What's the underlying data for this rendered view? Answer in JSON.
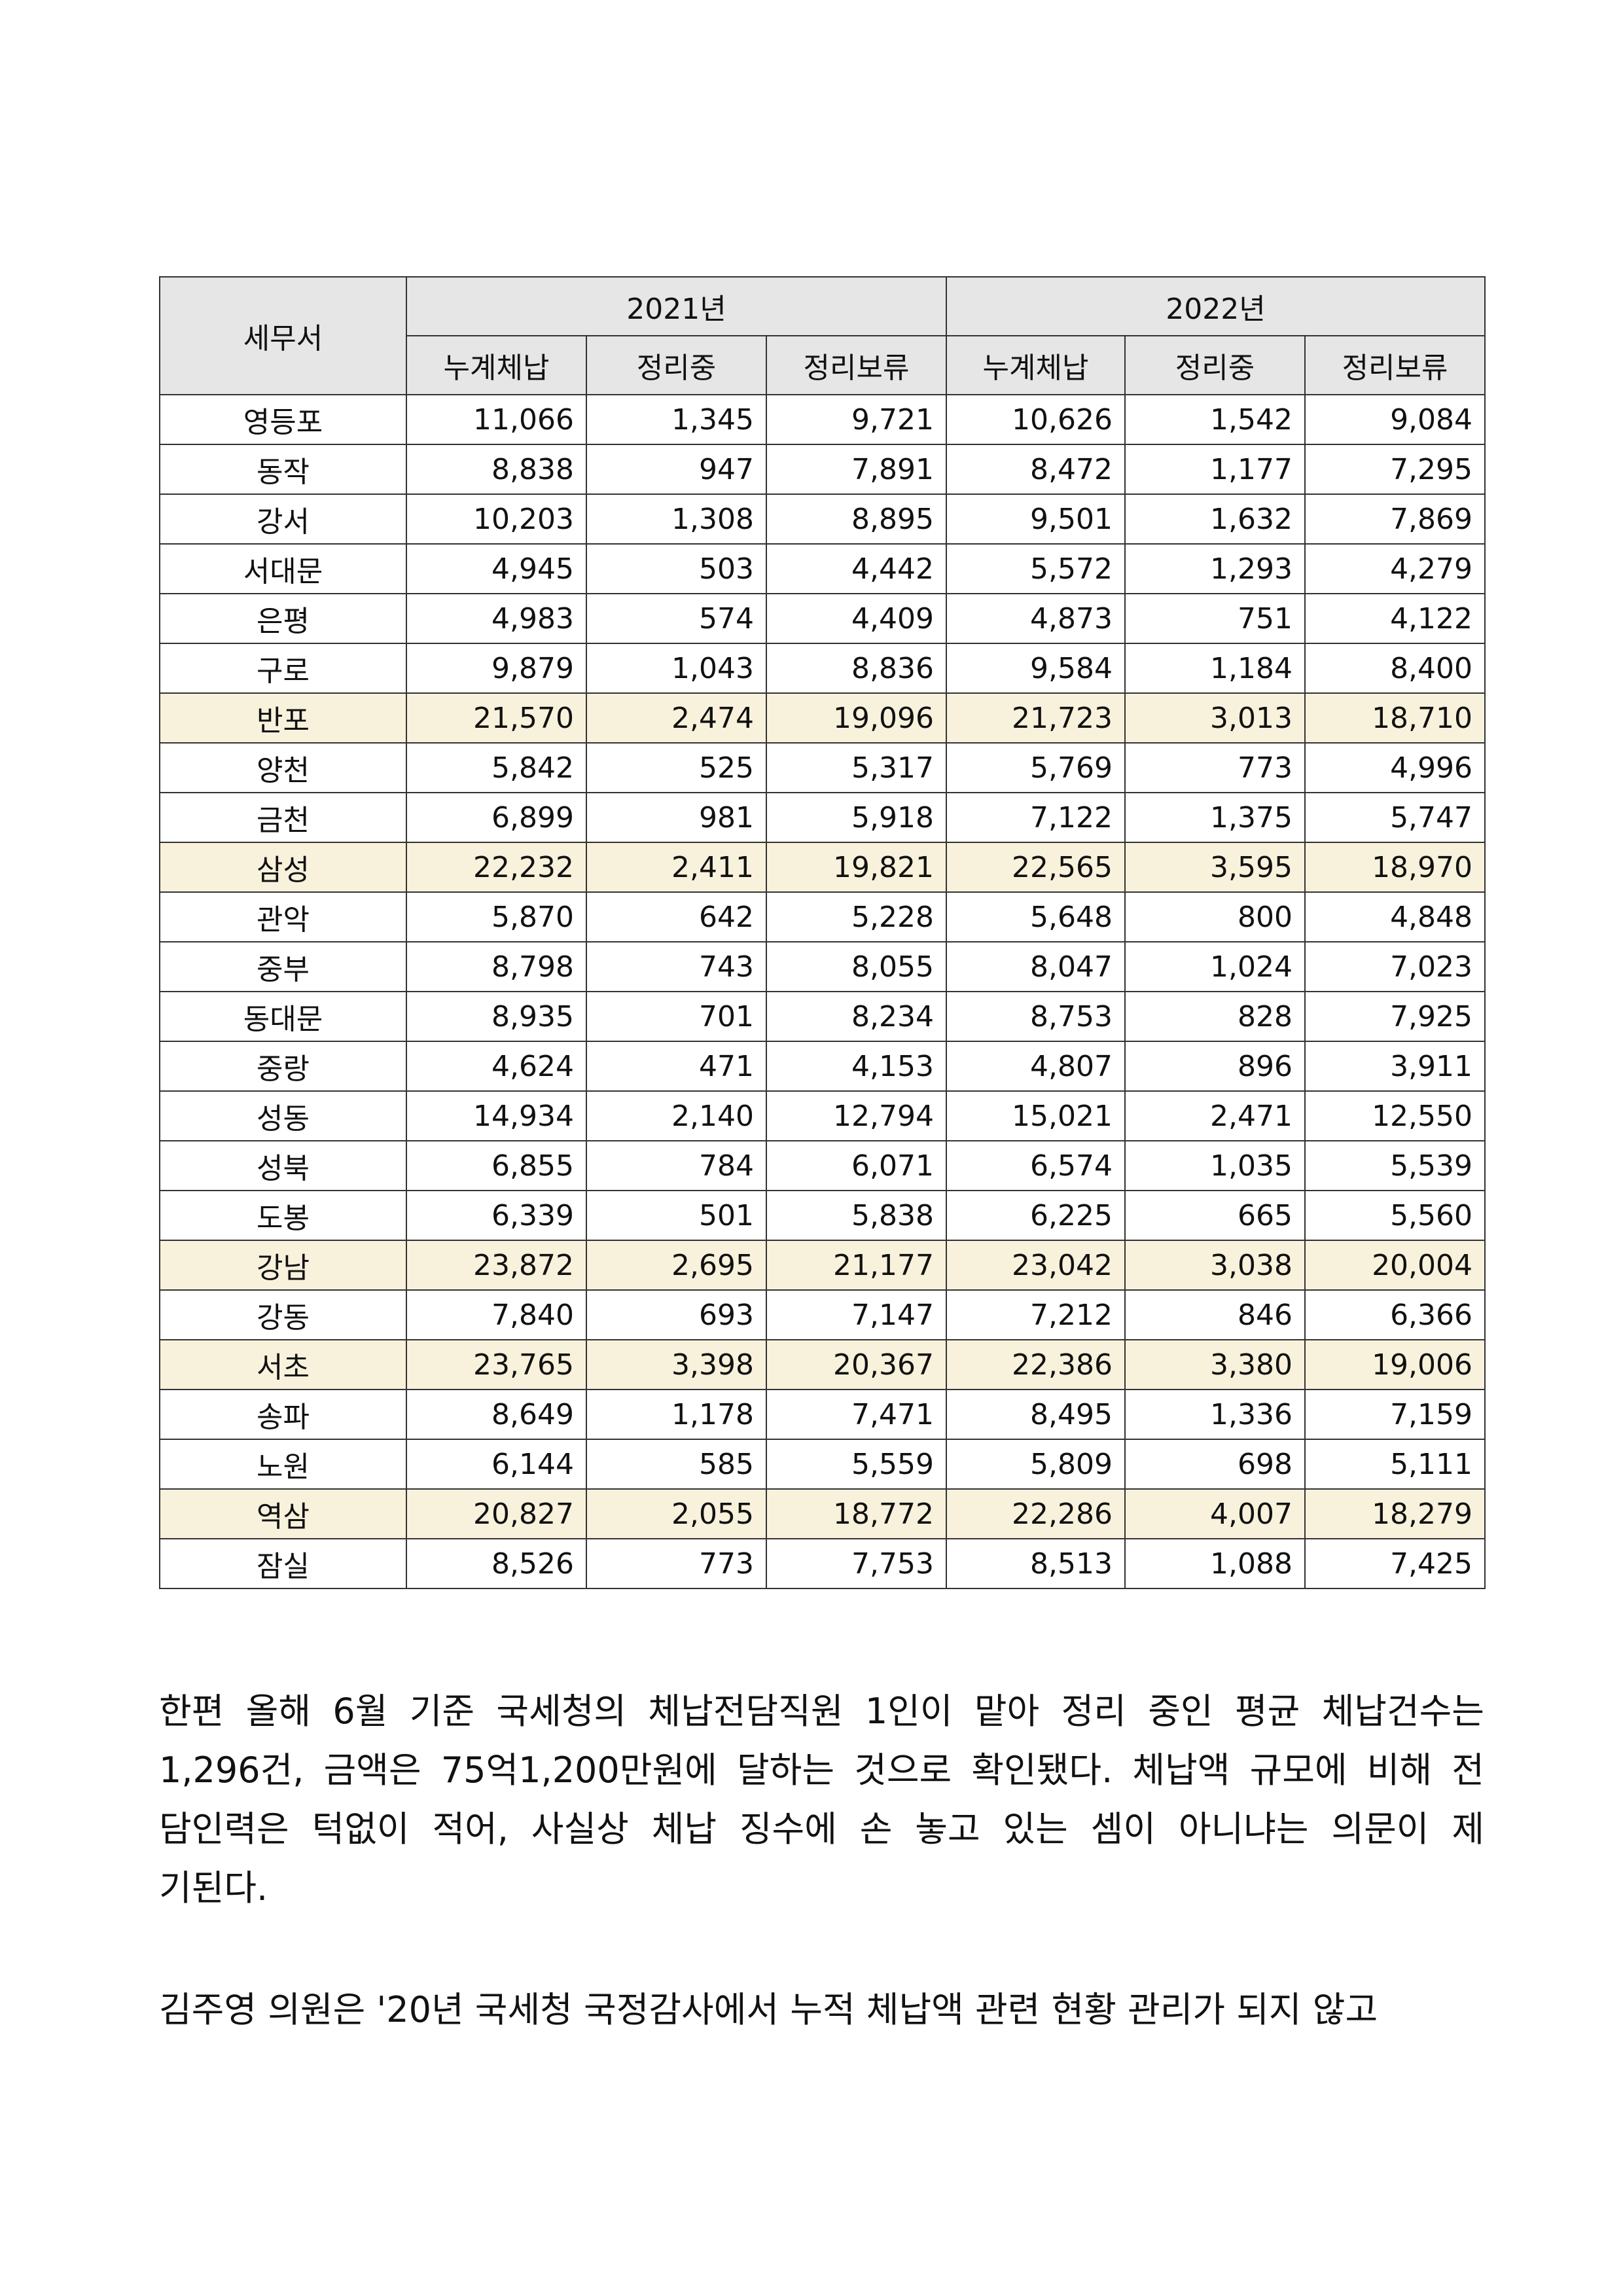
{
  "table": {
    "header_office": "세무서",
    "years": [
      "2021년",
      "2022년"
    ],
    "subcolumns": [
      "누계체납",
      "정리중",
      "정리보류",
      "누계체납",
      "정리중",
      "정리보류"
    ],
    "highlight_color": "#f8f2dc",
    "header_color": "#e6e6e6",
    "rows": [
      {
        "name": "영등포",
        "values": [
          "11,066",
          "1,345",
          "9,721",
          "10,626",
          "1,542",
          "9,084"
        ],
        "highlight": false
      },
      {
        "name": "동작",
        "values": [
          "8,838",
          "947",
          "7,891",
          "8,472",
          "1,177",
          "7,295"
        ],
        "highlight": false
      },
      {
        "name": "강서",
        "values": [
          "10,203",
          "1,308",
          "8,895",
          "9,501",
          "1,632",
          "7,869"
        ],
        "highlight": false
      },
      {
        "name": "서대문",
        "values": [
          "4,945",
          "503",
          "4,442",
          "5,572",
          "1,293",
          "4,279"
        ],
        "highlight": false
      },
      {
        "name": "은평",
        "values": [
          "4,983",
          "574",
          "4,409",
          "4,873",
          "751",
          "4,122"
        ],
        "highlight": false
      },
      {
        "name": "구로",
        "values": [
          "9,879",
          "1,043",
          "8,836",
          "9,584",
          "1,184",
          "8,400"
        ],
        "highlight": false
      },
      {
        "name": "반포",
        "values": [
          "21,570",
          "2,474",
          "19,096",
          "21,723",
          "3,013",
          "18,710"
        ],
        "highlight": true
      },
      {
        "name": "양천",
        "values": [
          "5,842",
          "525",
          "5,317",
          "5,769",
          "773",
          "4,996"
        ],
        "highlight": false
      },
      {
        "name": "금천",
        "values": [
          "6,899",
          "981",
          "5,918",
          "7,122",
          "1,375",
          "5,747"
        ],
        "highlight": false
      },
      {
        "name": "삼성",
        "values": [
          "22,232",
          "2,411",
          "19,821",
          "22,565",
          "3,595",
          "18,970"
        ],
        "highlight": true
      },
      {
        "name": "관악",
        "values": [
          "5,870",
          "642",
          "5,228",
          "5,648",
          "800",
          "4,848"
        ],
        "highlight": false
      },
      {
        "name": "중부",
        "values": [
          "8,798",
          "743",
          "8,055",
          "8,047",
          "1,024",
          "7,023"
        ],
        "highlight": false
      },
      {
        "name": "동대문",
        "values": [
          "8,935",
          "701",
          "8,234",
          "8,753",
          "828",
          "7,925"
        ],
        "highlight": false
      },
      {
        "name": "중랑",
        "values": [
          "4,624",
          "471",
          "4,153",
          "4,807",
          "896",
          "3,911"
        ],
        "highlight": false
      },
      {
        "name": "성동",
        "values": [
          "14,934",
          "2,140",
          "12,794",
          "15,021",
          "2,471",
          "12,550"
        ],
        "highlight": false
      },
      {
        "name": "성북",
        "values": [
          "6,855",
          "784",
          "6,071",
          "6,574",
          "1,035",
          "5,539"
        ],
        "highlight": false
      },
      {
        "name": "도봉",
        "values": [
          "6,339",
          "501",
          "5,838",
          "6,225",
          "665",
          "5,560"
        ],
        "highlight": false
      },
      {
        "name": "강남",
        "values": [
          "23,872",
          "2,695",
          "21,177",
          "23,042",
          "3,038",
          "20,004"
        ],
        "highlight": true
      },
      {
        "name": "강동",
        "values": [
          "7,840",
          "693",
          "7,147",
          "7,212",
          "846",
          "6,366"
        ],
        "highlight": false
      },
      {
        "name": "서초",
        "values": [
          "23,765",
          "3,398",
          "20,367",
          "22,386",
          "3,380",
          "19,006"
        ],
        "highlight": true
      },
      {
        "name": "송파",
        "values": [
          "8,649",
          "1,178",
          "7,471",
          "8,495",
          "1,336",
          "7,159"
        ],
        "highlight": false
      },
      {
        "name": "노원",
        "values": [
          "6,144",
          "585",
          "5,559",
          "5,809",
          "698",
          "5,111"
        ],
        "highlight": false
      },
      {
        "name": "역삼",
        "values": [
          "20,827",
          "2,055",
          "18,772",
          "22,286",
          "4,007",
          "18,279"
        ],
        "highlight": true
      },
      {
        "name": "잠실",
        "values": [
          "8,526",
          "773",
          "7,753",
          "8,513",
          "1,088",
          "7,425"
        ],
        "highlight": false
      }
    ]
  },
  "paragraphs": [
    {
      "lines": [
        "한편 올해 6월 기준 국세청의 체납전담직원 1인이 맡아 정리 중인 평균 체납건수는",
        "1,296건, 금액은 75억1,200만원에 달하는 것으로 확인됐다. 체납액 규모에 비해 전",
        "담인력은 턱없이 적어, 사실상 체납 징수에 손 놓고 있는 셈이 아니냐는 의문이 제",
        "기된다."
      ]
    },
    {
      "lines": [
        "김주영 의원은 '20년 국세청 국정감사에서 누적 체납액 관련 현황 관리가 되지 않고"
      ]
    }
  ]
}
